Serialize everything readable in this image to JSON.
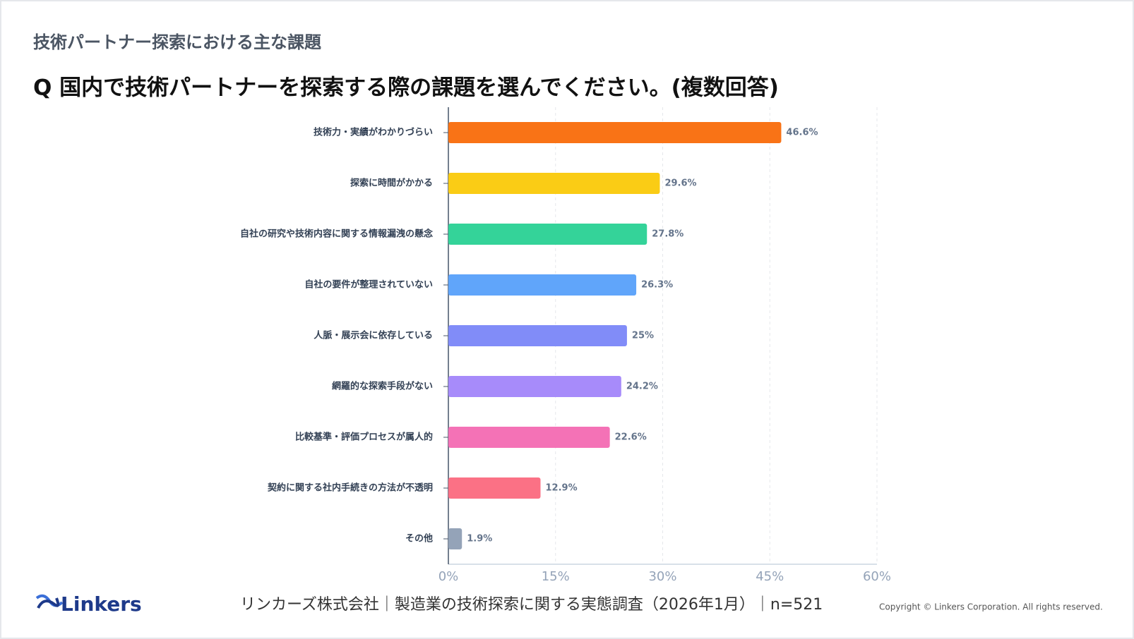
{
  "header": {
    "title": "技術パートナー探索における主な課題"
  },
  "chart_data": {
    "type": "barh",
    "title": "Q 国内で技術パートナーを探索する際の課題を選んでください。(複数回答)",
    "categories": [
      "技術力・実績がわかりづらい",
      "探索に時間がかかる",
      "自社の研究や技術内容に関する情報漏洩の懸念",
      "自社の要件が整理されていない",
      "人脈・展示会に依存している",
      "網羅的な探索手段がない",
      "比較基準・評価プロセスが属人的",
      "契約に関する社内手続きの方法が不透明",
      "その他"
    ],
    "values": [
      46.6,
      29.6,
      27.8,
      26.3,
      25,
      24.2,
      22.6,
      12.9,
      1.9
    ],
    "value_labels": [
      "46.6%",
      "29.6%",
      "27.8%",
      "26.3%",
      "25%",
      "24.2%",
      "22.6%",
      "12.9%",
      "1.9%"
    ],
    "colors": [
      "#f97316",
      "#facc15",
      "#34d399",
      "#60a5fa",
      "#818cf8",
      "#a78bfa",
      "#f472b6",
      "#fb7185",
      "#94a3b8"
    ],
    "xlim": [
      0,
      60
    ],
    "xticks": [
      {
        "value": 0,
        "label": "0%"
      },
      {
        "value": 15,
        "label": "15%"
      },
      {
        "value": 30,
        "label": "30%"
      },
      {
        "value": 45,
        "label": "45%"
      },
      {
        "value": 60,
        "label": "60%"
      }
    ],
    "grid": true
  },
  "footer": {
    "logo": "Linkers",
    "source": "リンカーズ株式会社｜製造業の技術探索に関する実態調査（2026年1月）｜n=521",
    "copyright": "Copyright © Linkers Corporation. All rights reserved."
  }
}
